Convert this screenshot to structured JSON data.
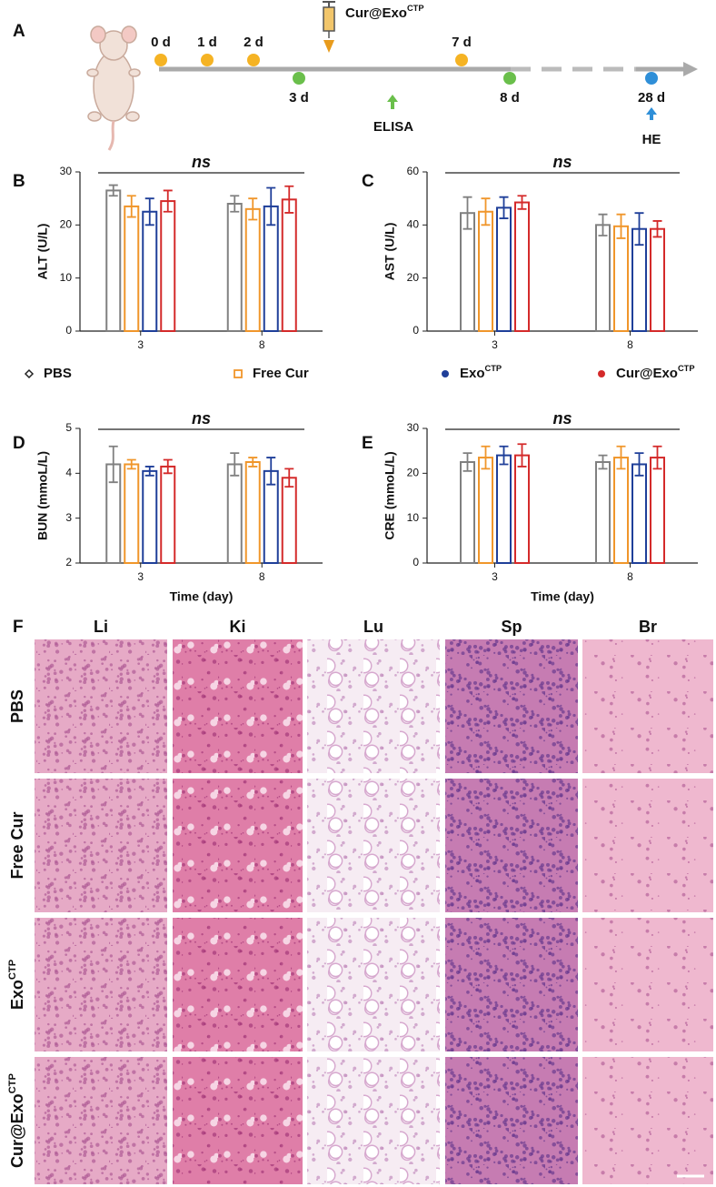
{
  "panel_labels": [
    "A",
    "B",
    "C",
    "D",
    "E",
    "F"
  ],
  "timeline": {
    "days": [
      "0 d",
      "1 d",
      "2 d",
      "3 d",
      "7 d",
      "8 d",
      "28 d"
    ],
    "injection": "Cur@Exo",
    "injection_sup": "CTP",
    "elisa": "ELISA",
    "he": "HE"
  },
  "chart_data": [
    {
      "type": "bar",
      "ylabel": "ALT (U/L)",
      "annotation": "ns",
      "categories": [
        "3",
        "8"
      ],
      "ylim": [
        0,
        30
      ],
      "yticks": [
        0,
        10,
        20,
        30
      ],
      "series": [
        {
          "name": "PBS",
          "color": "#808080",
          "values": [
            26.5,
            24
          ],
          "errors": [
            1,
            1.5
          ]
        },
        {
          "name": "Free Cur",
          "color": "#f0962b",
          "values": [
            23.5,
            23
          ],
          "errors": [
            2,
            2
          ]
        },
        {
          "name": "Exo",
          "name_sup": "CTP",
          "color": "#1f3f99",
          "values": [
            22.5,
            23.5
          ],
          "errors": [
            2.5,
            3.5
          ]
        },
        {
          "name": "Cur@Exo",
          "name_sup": "CTP",
          "color": "#d42a2a",
          "values": [
            24.5,
            24.8
          ],
          "errors": [
            2,
            2.5
          ]
        }
      ]
    },
    {
      "type": "bar",
      "ylabel": "AST (U/L)",
      "annotation": "ns",
      "categories": [
        "3",
        "8"
      ],
      "ylim": [
        0,
        60
      ],
      "yticks": [
        0,
        20,
        40,
        60
      ],
      "series": [
        {
          "name": "PBS",
          "color": "#808080",
          "values": [
            44.5,
            40
          ],
          "errors": [
            6,
            4
          ]
        },
        {
          "name": "Free Cur",
          "color": "#f0962b",
          "values": [
            45,
            39.5
          ],
          "errors": [
            5,
            4.5
          ]
        },
        {
          "name": "Exo",
          "name_sup": "CTP",
          "color": "#1f3f99",
          "values": [
            46.5,
            38.5
          ],
          "errors": [
            4,
            6
          ]
        },
        {
          "name": "Cur@Exo",
          "name_sup": "CTP",
          "color": "#d42a2a",
          "values": [
            48.5,
            38.5
          ],
          "errors": [
            2.5,
            3
          ]
        }
      ]
    },
    {
      "type": "bar",
      "ylabel": "BUN (mmoL/L)",
      "xlabel": "Time (day)",
      "annotation": "ns",
      "categories": [
        "3",
        "8"
      ],
      "ylim": [
        2,
        5
      ],
      "yticks": [
        2,
        3,
        4,
        5
      ],
      "series": [
        {
          "name": "PBS",
          "color": "#808080",
          "values": [
            4.2,
            4.2
          ],
          "errors": [
            0.4,
            0.25
          ]
        },
        {
          "name": "Free Cur",
          "color": "#f0962b",
          "values": [
            4.2,
            4.25
          ],
          "errors": [
            0.1,
            0.1
          ]
        },
        {
          "name": "Exo",
          "name_sup": "CTP",
          "color": "#1f3f99",
          "values": [
            4.05,
            4.05
          ],
          "errors": [
            0.1,
            0.3
          ]
        },
        {
          "name": "Cur@Exo",
          "name_sup": "CTP",
          "color": "#d42a2a",
          "values": [
            4.15,
            3.9
          ],
          "errors": [
            0.15,
            0.2
          ]
        }
      ]
    },
    {
      "type": "bar",
      "ylabel": "CRE (mmoL/L)",
      "xlabel": "Time (day)",
      "annotation": "ns",
      "categories": [
        "3",
        "8"
      ],
      "ylim": [
        0,
        30
      ],
      "yticks": [
        0,
        10,
        20,
        30
      ],
      "series": [
        {
          "name": "PBS",
          "color": "#808080",
          "values": [
            22.5,
            22.5
          ],
          "errors": [
            2,
            1.5
          ]
        },
        {
          "name": "Free Cur",
          "color": "#f0962b",
          "values": [
            23.5,
            23.5
          ],
          "errors": [
            2.5,
            2.5
          ]
        },
        {
          "name": "Exo",
          "name_sup": "CTP",
          "color": "#1f3f99",
          "values": [
            24,
            22
          ],
          "errors": [
            2,
            2.5
          ]
        },
        {
          "name": "Cur@Exo",
          "name_sup": "CTP",
          "color": "#d42a2a",
          "values": [
            24,
            23.5
          ],
          "errors": [
            2.5,
            2.5
          ]
        }
      ]
    }
  ],
  "histology": {
    "columns": [
      "Li",
      "Ki",
      "Lu",
      "Sp",
      "Br"
    ],
    "rows": [
      {
        "text": "PBS"
      },
      {
        "text": "Free Cur"
      },
      {
        "text": "Exo",
        "sup": "CTP"
      },
      {
        "text": "Cur@Exo",
        "sup": "CTP"
      }
    ]
  }
}
